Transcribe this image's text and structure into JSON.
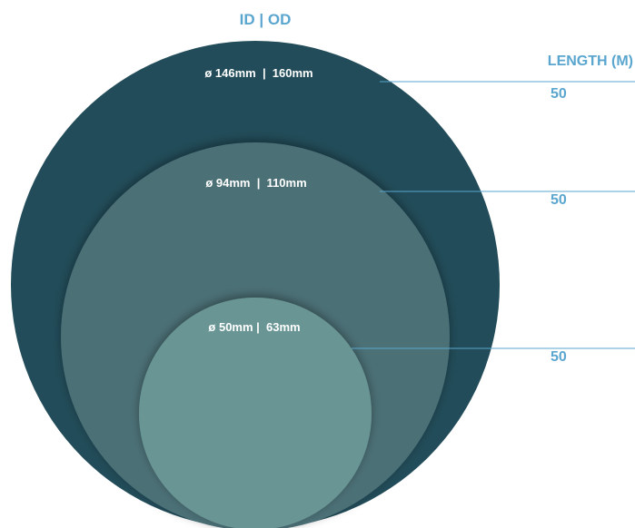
{
  "header": {
    "id_od": "ID | OD",
    "length": "LENGTH (M)"
  },
  "colors": {
    "accent": "#5aa6cf",
    "large_circle": "#224c59",
    "medium_circle": "#4b6f76",
    "small_circle": "#6a9595",
    "label_text": "#ffffff"
  },
  "pipes": [
    {
      "label": "ø 146mm  |  160mm",
      "length": "50"
    },
    {
      "label": "ø 94mm  |  110mm",
      "length": "50"
    },
    {
      "label": "ø 50mm |  63mm",
      "length": "50"
    }
  ]
}
